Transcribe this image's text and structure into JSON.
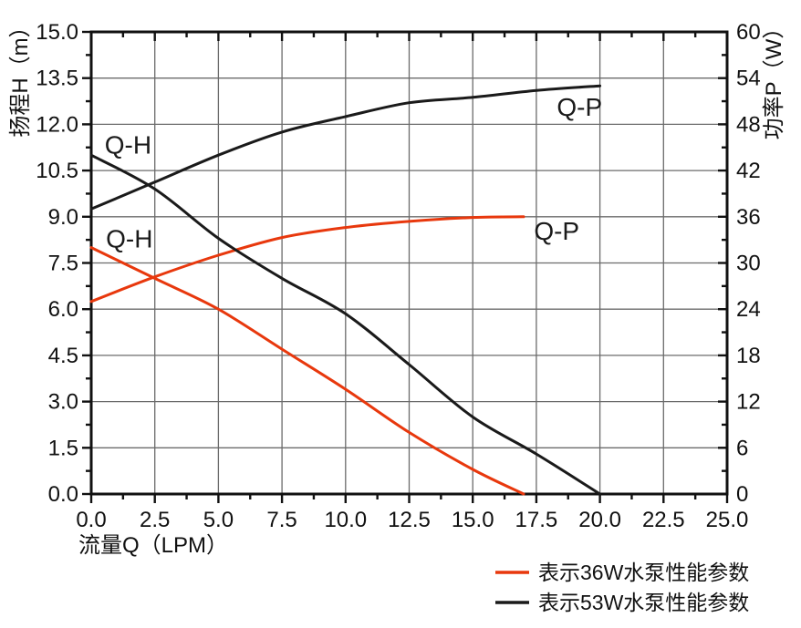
{
  "chart_data": {
    "type": "line",
    "title": "",
    "xlabel": "流量Q（LPM）",
    "ylabel_left": "扬程H（m）",
    "ylabel_right": "功率P（W）",
    "xlim": [
      0,
      25
    ],
    "ylim_left": [
      0,
      15
    ],
    "ylim_right": [
      0,
      60
    ],
    "grid": true,
    "legend_position": "bottom-right",
    "xticks": {
      "values": [
        0,
        2.5,
        5,
        7.5,
        10,
        12.5,
        15,
        17.5,
        20,
        22.5,
        25
      ],
      "labels": [
        "0.0",
        "2.5",
        "5.0",
        "7.5",
        "10.0",
        "12.5",
        "15.0",
        "17.5",
        "20.0",
        "22.5",
        "25.0"
      ]
    },
    "yticks_left": {
      "values": [
        0,
        1.5,
        3,
        4.5,
        6,
        7.5,
        9,
        10.5,
        12,
        13.5,
        15
      ],
      "labels": [
        "0.0",
        "1.5",
        "3.0",
        "4.5",
        "6.0",
        "7.5",
        "9.0",
        "10.5",
        "12.0",
        "13.5",
        "15.0"
      ]
    },
    "yticks_right": {
      "values": [
        0,
        6,
        12,
        18,
        24,
        30,
        36,
        42,
        48,
        54,
        60
      ],
      "labels": [
        "0",
        "6",
        "12",
        "18",
        "24",
        "30",
        "36",
        "42",
        "48",
        "54",
        "60"
      ]
    },
    "series": [
      {
        "id": "qh-36w",
        "pump": "36W",
        "curve": "Q-H",
        "axis": "left",
        "color": "#e8380d",
        "points": [
          [
            0,
            8.0
          ],
          [
            2.5,
            7.0
          ],
          [
            5,
            6.0
          ],
          [
            7.5,
            4.7
          ],
          [
            10,
            3.4
          ],
          [
            12.5,
            2.0
          ],
          [
            15,
            0.8
          ],
          [
            17,
            0
          ]
        ]
      },
      {
        "id": "qp-36w",
        "pump": "36W",
        "curve": "Q-P",
        "axis": "right",
        "color": "#e8380d",
        "points": [
          [
            0,
            25
          ],
          [
            2.5,
            28.2
          ],
          [
            5,
            31
          ],
          [
            7.5,
            33.3
          ],
          [
            10,
            34.6
          ],
          [
            12.5,
            35.4
          ],
          [
            15,
            35.9
          ],
          [
            17,
            36
          ]
        ]
      },
      {
        "id": "qh-53w",
        "pump": "53W",
        "curve": "Q-H",
        "axis": "left",
        "color": "#1a1a1a",
        "points": [
          [
            0,
            11.0
          ],
          [
            2.5,
            9.9
          ],
          [
            5,
            8.3
          ],
          [
            7.5,
            7.0
          ],
          [
            10,
            5.85
          ],
          [
            12.5,
            4.2
          ],
          [
            15,
            2.5
          ],
          [
            17.5,
            1.3
          ],
          [
            20,
            0
          ]
        ]
      },
      {
        "id": "qp-53w",
        "pump": "53W",
        "curve": "Q-P",
        "axis": "right",
        "color": "#1a1a1a",
        "points": [
          [
            0,
            37
          ],
          [
            2.5,
            40.5
          ],
          [
            5,
            44
          ],
          [
            7.5,
            47
          ],
          [
            10,
            49
          ],
          [
            12.5,
            50.8
          ],
          [
            15,
            51.5
          ],
          [
            17.5,
            52.4
          ],
          [
            20,
            53
          ]
        ]
      }
    ],
    "curve_labels": [
      {
        "text": "Q-H",
        "axis": "left",
        "x": 1.45,
        "y": 11.35,
        "color": "#1a1a1a"
      },
      {
        "text": "Q-H",
        "axis": "left",
        "x": 1.5,
        "y": 8.3,
        "color": "#1a1a1a"
      },
      {
        "text": "Q-P",
        "axis": "right",
        "x": 19.2,
        "y": 50.3,
        "color": "#1a1a1a"
      },
      {
        "text": "Q-P",
        "axis": "right",
        "x": 18.3,
        "y": 34.2,
        "color": "#1a1a1a"
      }
    ],
    "legend": [
      {
        "label": "表示36W水泵性能参数",
        "color": "#e8380d"
      },
      {
        "label": "表示53W水泵性能参数",
        "color": "#1a1a1a"
      }
    ],
    "colors": {
      "accent_red": "#e8380d",
      "curve_black": "#1a1a1a",
      "grid": "#6b6b6b",
      "axis": "#111111",
      "text": "#111111"
    }
  }
}
